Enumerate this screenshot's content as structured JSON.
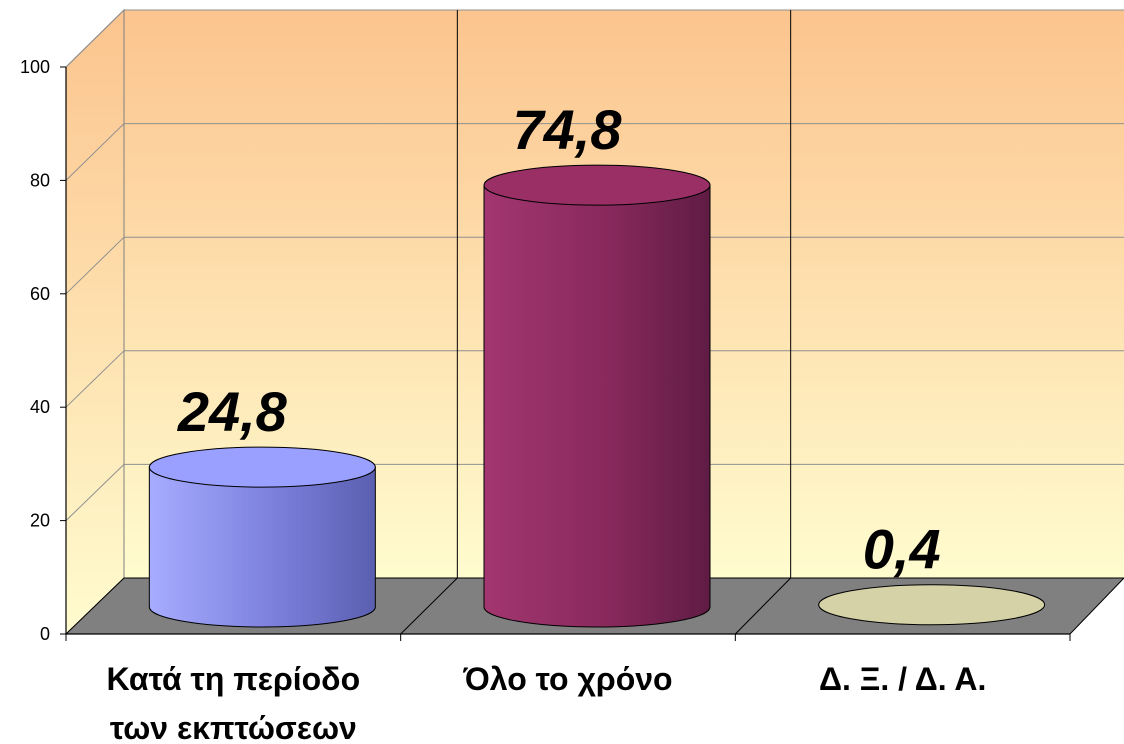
{
  "chart_data": {
    "type": "bar",
    "style": "3d-cylinder",
    "categories": [
      "Κατά τη περίοδο των εκπτώσεων",
      "Όλο το χρόνο",
      "Δ. Ξ. / Δ. Α."
    ],
    "category_lines": [
      [
        "Κατά τη περίοδο",
        "των εκπτώσεων"
      ],
      [
        "Όλο το χρόνο"
      ],
      [
        "Δ. Ξ. / Δ. Α."
      ]
    ],
    "values": [
      24.8,
      74.8,
      0.4
    ],
    "value_labels": [
      "24,8",
      "74,8",
      "0,4"
    ],
    "bar_colors": [
      "#9aa0ff",
      "#9a2f66",
      "#d4d2a6"
    ],
    "yticks": [
      "0",
      "20",
      "40",
      "60",
      "80",
      "100"
    ],
    "ylim": [
      0,
      100
    ],
    "grid": true,
    "legend": "none",
    "title": "",
    "xlabel": "",
    "ylabel": ""
  }
}
